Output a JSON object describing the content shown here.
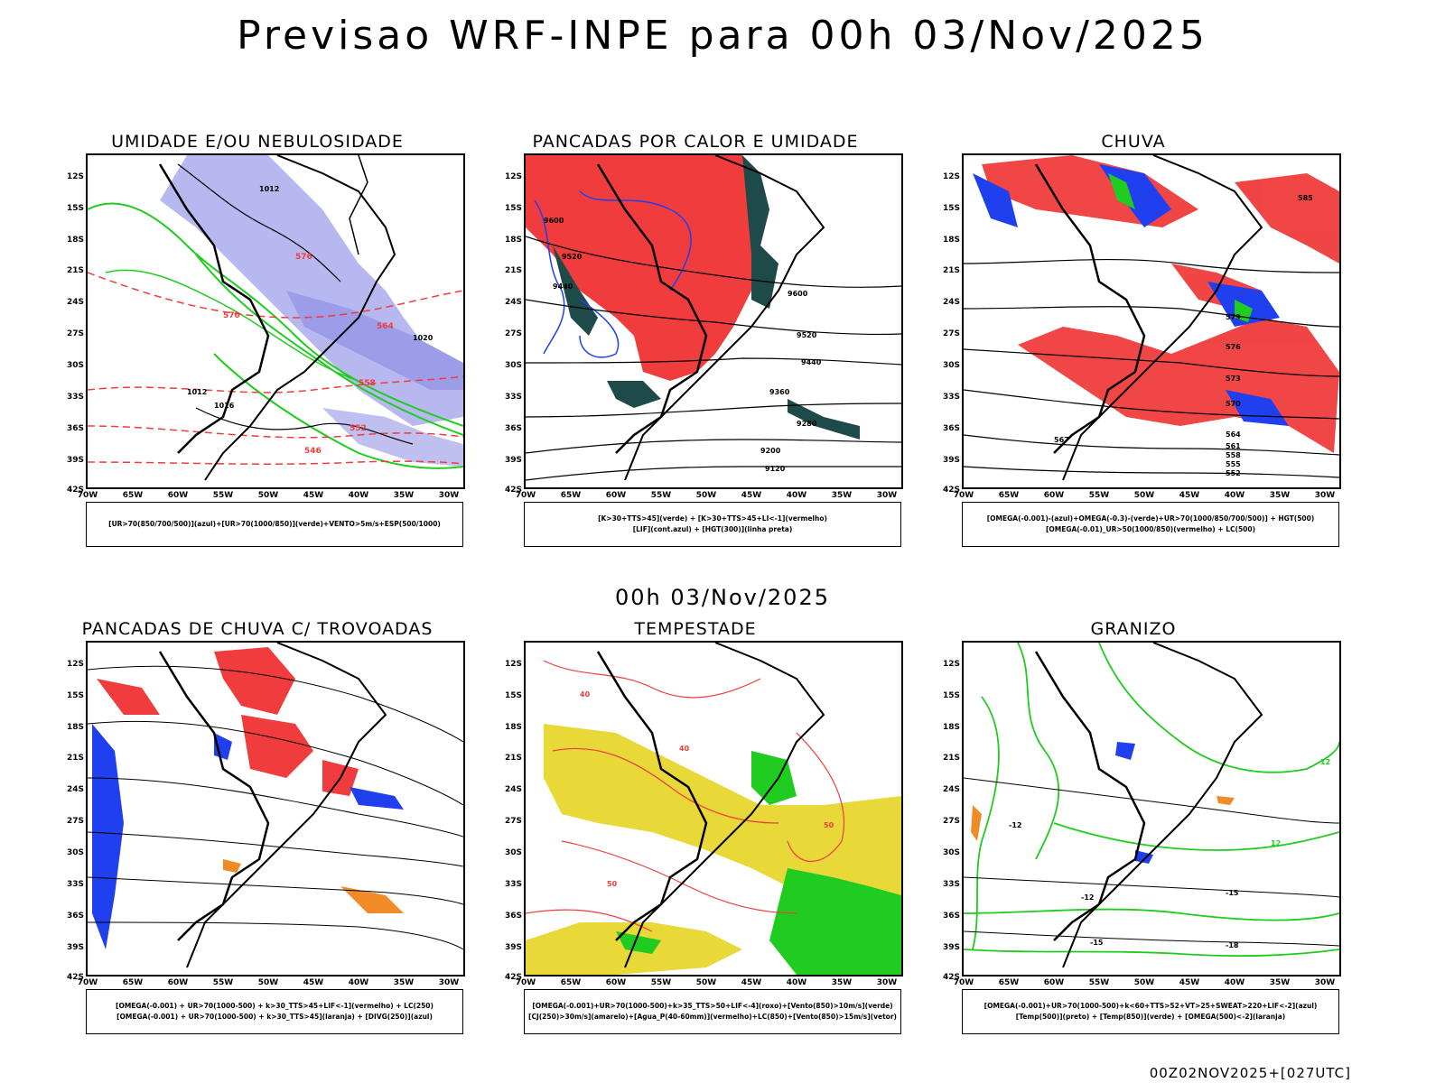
{
  "title": "Previsao WRF-INPE  para 00h 03/Nov/2025",
  "mid_date": "00h 03/Nov/2025",
  "footer": "00Z02NOV2025+[027UTC]",
  "lat_labels": [
    "12S",
    "15S",
    "18S",
    "21S",
    "24S",
    "27S",
    "30S",
    "33S",
    "36S",
    "39S",
    "42S"
  ],
  "lon_labels": [
    "70W",
    "65W",
    "60W",
    "55W",
    "50W",
    "45W",
    "40W",
    "35W",
    "30W"
  ],
  "panels": [
    {
      "id": "umidade",
      "title": "UMIDADE E/OU NEBULOSIDADE",
      "legend": [
        "[UR>70(850/700/500)](azul)+[UR>70(1000/850)](verde)+VENTO>5m/s+ESP(500/1000)"
      ],
      "contour_labels": [
        "1012",
        "1012",
        "1016",
        "1020",
        "576",
        "570",
        "564",
        "558",
        "552",
        "546"
      ]
    },
    {
      "id": "pancadas-calor",
      "title": "PANCADAS POR CALOR E UMIDADE",
      "legend": [
        "[K>30+TTS>45](verde) + [K>30+TTS>45+LI<-1](vermelho)",
        "[LIF](cont.azul) + [HGT(300)](linha preta)"
      ],
      "contour_labels": [
        "9600",
        "9520",
        "9440",
        "9360",
        "9280",
        "9200",
        "9120",
        "9600",
        "9520",
        "9440"
      ]
    },
    {
      "id": "chuva",
      "title": "CHUVA",
      "legend": [
        "[OMEGA(-0.001)-(azul)+OMEGA(-0.3)-(verde)+UR>70(1000/850/700/500)] + HGT(500)",
        "[OMEGA(-0.01)_UR>50(1000/850)(vermelho) + LC(500)"
      ],
      "contour_labels": [
        "585",
        "579",
        "576",
        "573",
        "570",
        "567",
        "564",
        "561",
        "558",
        "555",
        "552"
      ]
    },
    {
      "id": "trovoadas",
      "title": "PANCADAS DE CHUVA C/ TROVOADAS",
      "legend": [
        "[OMEGA(-0.001) + UR>70(1000-500) + k>30_TTS>45+LIF<-1](vermelho) + LC(250)",
        "[OMEGA(-0.001) + UR>70(1000-500) + k>30_TTS>45](laranja) + [DIVG(250)](azul)"
      ],
      "contour_labels": []
    },
    {
      "id": "tempestade",
      "title": "TEMPESTADE",
      "legend": [
        "[OMEGA(-0.001)+UR>70(1000-500)+k>35_TTS>50+LIF<-4](roxo)+[Vento(850)>10m/s](verde)",
        "[CJ(250)>30m/s](amarelo)+[Agua_P(40-60mm)](vermelho)+LC(850)+[Vento(850)>15m/s](vetor)"
      ],
      "contour_labels": [
        "40",
        "50",
        "40",
        "50"
      ]
    },
    {
      "id": "granizo",
      "title": "GRANIZO",
      "legend": [
        "[OMEGA(-0.001)+UR>70(1000-500)+k<60+TTS>52+VT>25+SWEAT>220+LIF<-2](azul)",
        "[Temp(500)](preto) + [Temp(850)](verde) + [OMEGA(500)<-2](laranja)"
      ],
      "contour_labels": [
        "-12",
        "-12",
        "-15",
        "-18",
        "-15",
        "12",
        "12"
      ]
    }
  ],
  "colors": {
    "blue_fill": "#b0b0f0",
    "green_line": "#1fcc1f",
    "red": "#f03c3c",
    "dark_teal": "#1f4a4a",
    "yellow": "#e8d838",
    "blue_dots": "#2040f0",
    "orange": "#f08c28",
    "black": "#000000"
  }
}
